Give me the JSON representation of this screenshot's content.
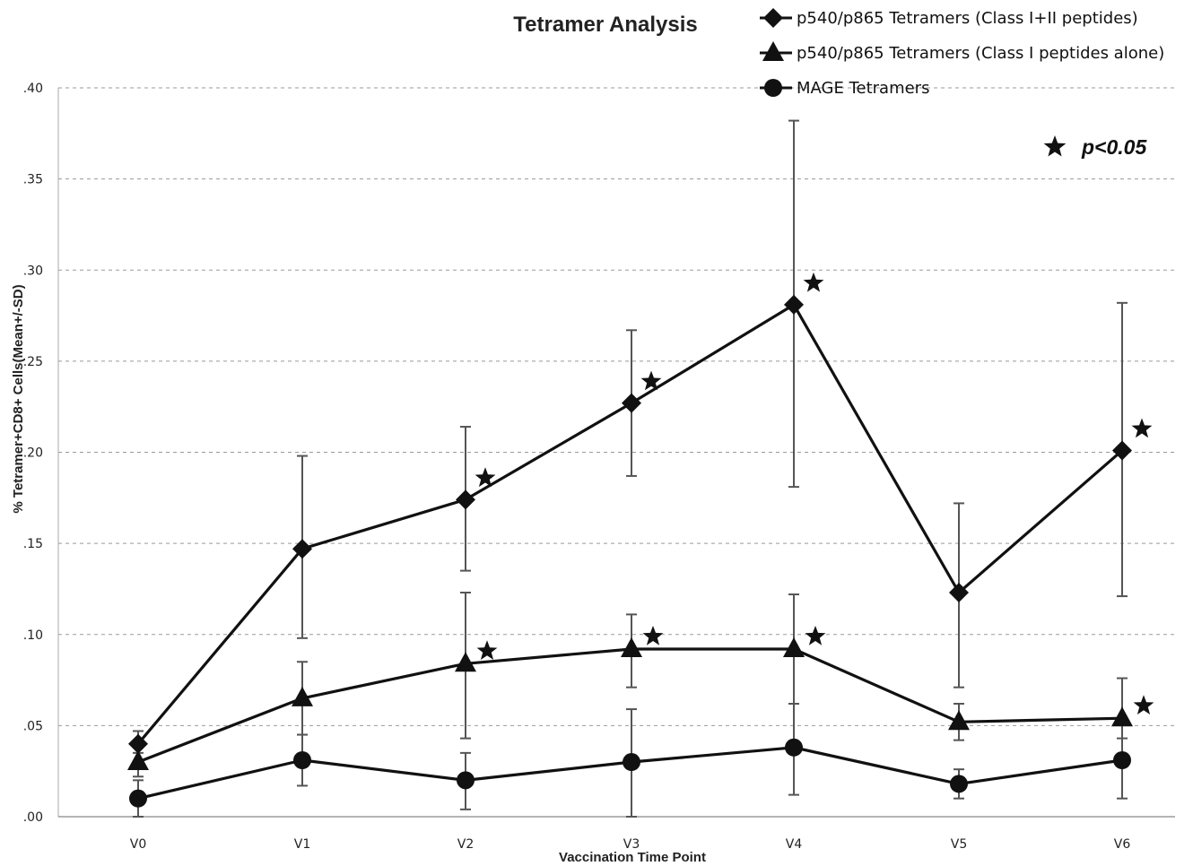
{
  "chart_data": {
    "type": "line",
    "title": "Tetramer Analysis",
    "xlabel": "Vaccination Time Point",
    "ylabel": "% Tetramer+CD8+ Cells(Mean+/-SD)",
    "categories": [
      "V0",
      "V1",
      "V2",
      "V3",
      "V4",
      "V5",
      "V6"
    ],
    "y_ticks": [
      ".00",
      ".05",
      ".10",
      ".15",
      ".20",
      ".25",
      ".30",
      ".35",
      ".40"
    ],
    "y_tick_values": [
      0,
      0.05,
      0.1,
      0.15,
      0.2,
      0.25,
      0.3,
      0.35,
      0.4
    ],
    "ylim": [
      0,
      0.4
    ],
    "grid": "horizontal dashed",
    "legend_position": "top-right",
    "significance_label": "p<0.05",
    "series": [
      {
        "name": "p540/p865 Tetramers (Class I+II peptides)",
        "marker": "diamond",
        "values": [
          0.04,
          0.147,
          0.174,
          0.227,
          0.281,
          0.123,
          0.201
        ],
        "error_low": [
          0.035,
          0.098,
          0.135,
          0.187,
          0.181,
          0.071,
          0.121
        ],
        "error_high": [
          0.047,
          0.198,
          0.214,
          0.267,
          0.382,
          0.172,
          0.282
        ],
        "significant": [
          false,
          false,
          true,
          true,
          true,
          false,
          true
        ]
      },
      {
        "name": "p540/p865 Tetramers (Class I peptides alone)",
        "marker": "triangle",
        "values": [
          0.03,
          0.065,
          0.084,
          0.092,
          0.092,
          0.052,
          0.054
        ],
        "error_low": [
          0.022,
          0.045,
          0.043,
          0.071,
          0.062,
          0.042,
          0.043
        ],
        "error_high": [
          0.038,
          0.085,
          0.123,
          0.111,
          0.122,
          0.062,
          0.076
        ],
        "significant": [
          false,
          false,
          true,
          true,
          true,
          false,
          true
        ]
      },
      {
        "name": "MAGE Tetramers",
        "marker": "circle",
        "values": [
          0.01,
          0.031,
          0.02,
          0.03,
          0.038,
          0.018,
          0.031
        ],
        "error_low": [
          0.0,
          0.017,
          0.004,
          0.0,
          0.012,
          0.01,
          0.01
        ],
        "error_high": [
          0.02,
          0.045,
          0.035,
          0.059,
          0.062,
          0.026,
          0.052
        ],
        "significant": [
          false,
          false,
          false,
          false,
          false,
          false,
          false
        ]
      }
    ]
  }
}
